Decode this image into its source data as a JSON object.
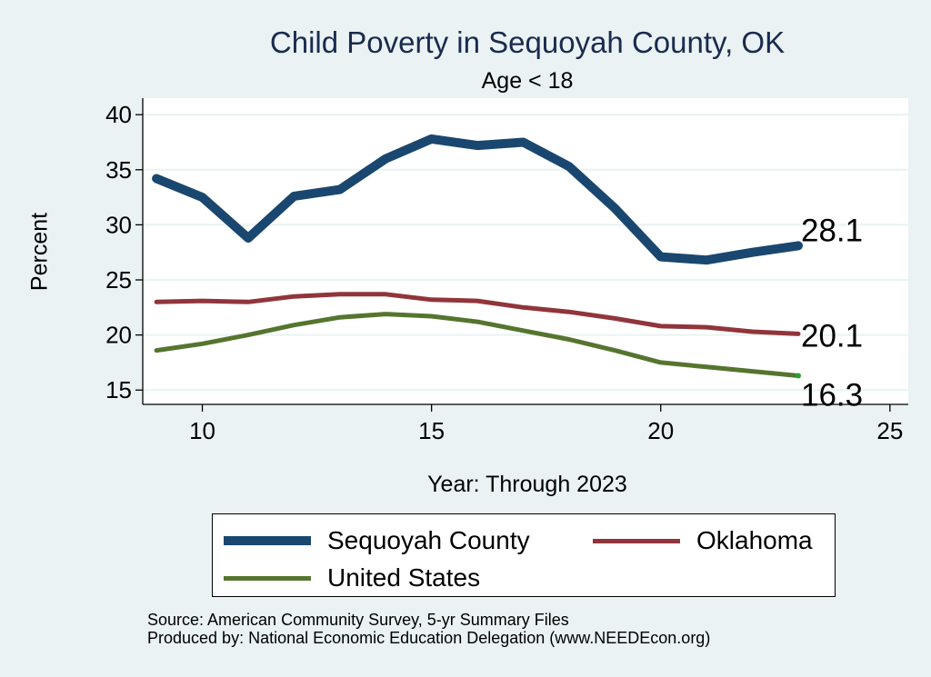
{
  "chart_data": {
    "type": "line",
    "title": "Child Poverty in Sequoyah County, OK",
    "subtitle": "Age < 18",
    "xlabel": "Year: Through 2023",
    "ylabel": "Percent",
    "xlim": [
      8.7,
      25.4
    ],
    "ylim": [
      13.7,
      41.5
    ],
    "x_ticks": [
      "10",
      "15",
      "20",
      "25"
    ],
    "y_ticks": [
      "15",
      "20",
      "25",
      "30",
      "35",
      "40"
    ],
    "x": [
      9,
      10,
      11,
      12,
      13,
      14,
      15,
      16,
      17,
      18,
      19,
      20,
      21,
      22,
      23
    ],
    "series": [
      {
        "name": "Sequoyah County",
        "color": "#1a476f",
        "values": [
          34.2,
          32.5,
          28.8,
          32.6,
          33.2,
          36.0,
          37.8,
          37.2,
          37.5,
          35.3,
          31.5,
          27.1,
          26.8,
          27.5,
          28.1
        ],
        "end_label": "28.1"
      },
      {
        "name": "Oklahoma",
        "color": "#90353b",
        "values": [
          23.0,
          23.1,
          23.0,
          23.5,
          23.7,
          23.7,
          23.2,
          23.1,
          22.5,
          22.1,
          21.5,
          20.8,
          20.7,
          20.3,
          20.1
        ],
        "end_label": "20.1"
      },
      {
        "name": "United States",
        "color": "#55752f",
        "values": [
          18.6,
          19.2,
          20.0,
          20.9,
          21.6,
          21.9,
          21.7,
          21.2,
          20.4,
          19.6,
          18.6,
          17.5,
          17.1,
          16.7,
          16.3
        ],
        "end_label": "16.3"
      }
    ],
    "legend": [
      "Sequoyah County",
      "Oklahoma",
      "United States"
    ]
  },
  "source_line": "Source: American Community Survey, 5-yr Summary Files",
  "produced_line": "Produced by: National Economic Education Delegation (www.NEEDEcon.org)",
  "colors": {
    "background": "#eaf2f3",
    "plot_background": "#ffffff",
    "grid": "#eaf2f3",
    "title": "#1a2b4f"
  }
}
